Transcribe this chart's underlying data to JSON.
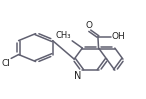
{
  "background_color": "#ffffff",
  "line_color": "#606070",
  "lw": 1.1,
  "fs": 6.5,
  "fig_w": 1.46,
  "fig_h": 0.99,
  "dpi": 100,
  "xlim": [
    0.0,
    1.0
  ],
  "ylim": [
    0.0,
    1.0
  ]
}
